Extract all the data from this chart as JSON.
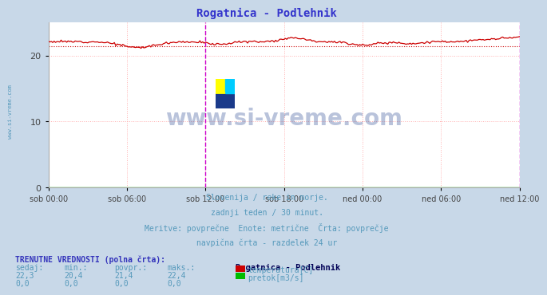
{
  "title": "Rogatnica - Podlehnik",
  "title_color": "#3333cc",
  "bg_color": "#c8d8e8",
  "plot_bg_color": "#ffffff",
  "grid_color": "#ffb0b0",
  "xlabel_ticks": [
    "sob 00:00",
    "sob 06:00",
    "sob 12:00",
    "sob 18:00",
    "ned 00:00",
    "ned 06:00",
    "ned 12:00"
  ],
  "xlabel_tick_positions": [
    0,
    0.25,
    0.5,
    0.75,
    1.0,
    1.25,
    1.5
  ],
  "ylim": [
    0,
    25
  ],
  "yticks": [
    0,
    10,
    20
  ],
  "temp_color": "#cc0000",
  "temp_avg": 21.4,
  "flow_color": "#00bb00",
  "watermark": "www.si-vreme.com",
  "watermark_color": "#1a3a8a",
  "watermark_alpha": 0.3,
  "subtitle_lines": [
    "Slovenija / reke in morje.",
    "zadnji teden / 30 minut.",
    "Meritve: povprečne  Enote: metrične  Črta: povprečje",
    "navpična črta - razdelek 24 ur"
  ],
  "subtitle_color": "#5599bb",
  "table_header_color": "#3333bb",
  "table_label_color": "#5599bb",
  "table_value_color": "#5599bb",
  "table_station": "Rogatnica - Podlehnik",
  "table_station_color": "#000055",
  "col_headers": [
    "sedaj:",
    "min.:",
    "povpr.:",
    "maks.:"
  ],
  "temp_row": [
    "22,3",
    "20,4",
    "21,4",
    "22,4"
  ],
  "flow_row": [
    "0,0",
    "0,0",
    "0,0",
    "0,0"
  ],
  "label_temp": "temperatura[C]",
  "label_flow": "pretok[m3/s]",
  "trenutne_label": "TRENUTNE VREDNOSTI (polna črta):",
  "vline_color": "#cc00cc",
  "side_label_color": "#5599bb",
  "side_label": "www.si-vreme.com"
}
